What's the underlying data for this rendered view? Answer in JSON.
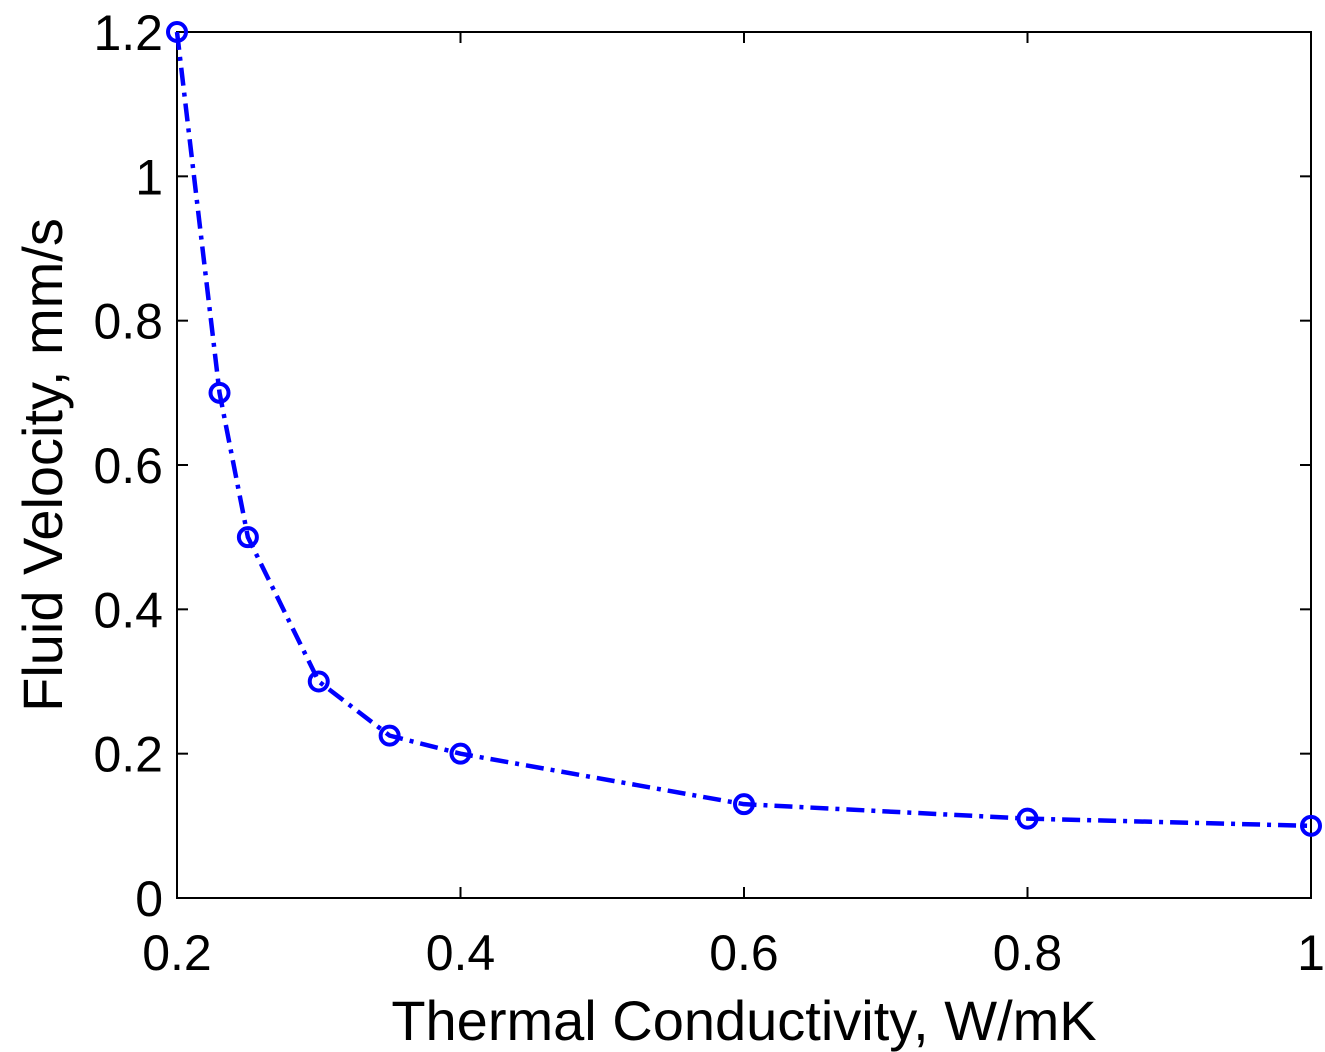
{
  "chart_data": {
    "type": "line",
    "title": "",
    "xlabel": "Thermal Conductivity, W/mK",
    "ylabel": "Fluid Velocity, mm/s",
    "xlim": [
      0.2,
      1
    ],
    "ylim": [
      0,
      1.2
    ],
    "x_ticks": [
      "0.2",
      "0.4",
      "0.6",
      "0.8",
      "1"
    ],
    "y_ticks": [
      "0",
      "0.2",
      "0.4",
      "0.6",
      "0.8",
      "1",
      "1.2"
    ],
    "grid": false,
    "series": [
      {
        "color": "#0000ff",
        "line_style": "dash-dot",
        "marker": "circle",
        "x": [
          0.2,
          0.23,
          0.25,
          0.3,
          0.35,
          0.4,
          0.6,
          0.8,
          1.0
        ],
        "y": [
          1.2,
          0.7,
          0.5,
          0.3,
          0.225,
          0.2,
          0.13,
          0.11,
          0.1
        ]
      }
    ]
  }
}
